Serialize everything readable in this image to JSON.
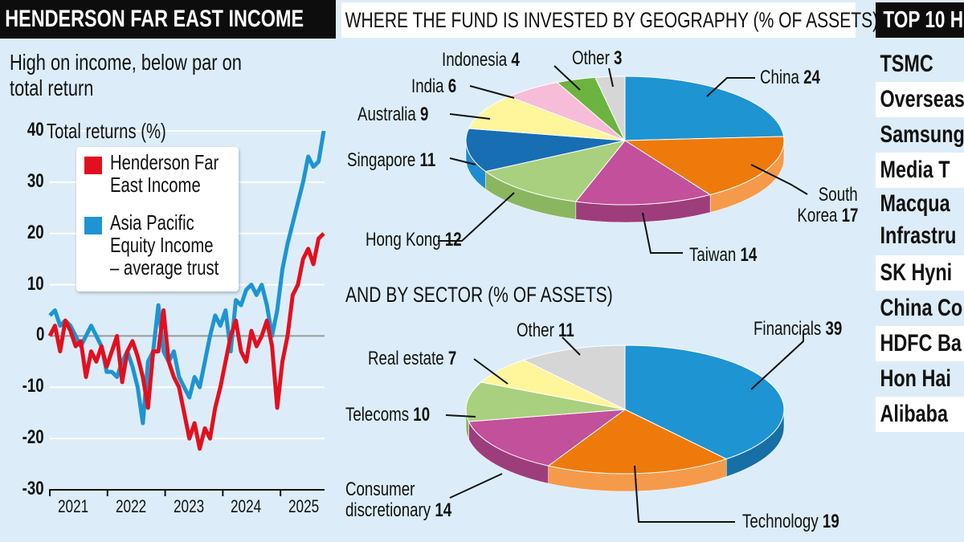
{
  "left": {
    "title": "HENDERSON FAR EAST INCOME",
    "subtitle_line1": "High on income, below par on",
    "subtitle_line2": "total return"
  },
  "middle": {
    "geo_title": "WHERE THE FUND IS INVESTED BY GEOGRAPHY (% OF ASSETS)",
    "sector_title": "AND BY SECTOR (% OF ASSETS)"
  },
  "right": {
    "title": "TOP 10 H",
    "holdings": [
      "TSMC",
      "Overseas",
      "Samsung",
      "Media T",
      "Macqua|Infrastru",
      "SK Hyni",
      "China Co",
      "HDFC Ba",
      "Hon Hai",
      "Alibaba"
    ]
  },
  "colors": {
    "red": "#e2101f",
    "blue": "#1e94d2",
    "background": "#dcedf9"
  },
  "chart_data": [
    {
      "type": "line",
      "title": "Total returns (%)",
      "ylabel": "Total returns (%)",
      "ylim": [
        -30,
        40
      ],
      "yticks": [
        "40",
        "30",
        "20",
        "10",
        "0",
        "-10",
        "-20",
        "-30"
      ],
      "xticks": [
        "2021",
        "2022",
        "2023",
        "2024",
        "2025"
      ],
      "xlim": [
        2021.0,
        2025.75
      ],
      "legend_position": "top-left",
      "series": [
        {
          "name": "Henderson Far East Income",
          "line1": "Henderson Far",
          "line2": "East Income",
          "color": "#e2101f",
          "values": [
            0,
            2,
            -3,
            3,
            1,
            -2,
            -1,
            -8,
            -3,
            -5,
            -2,
            -6,
            -3,
            0,
            -9,
            -3,
            -1,
            -4,
            -8,
            -14,
            -3,
            -3,
            5,
            -5,
            -8,
            -10,
            -15,
            -20,
            -17,
            -22,
            -18,
            -20,
            -14,
            -10,
            -5,
            0,
            3,
            -3,
            -5,
            1,
            -2,
            0,
            3,
            -2,
            -14,
            -5,
            0,
            8,
            10,
            15,
            17,
            14,
            19,
            20
          ]
        },
        {
          "name": "Asia Pacific Equity Income - average trust",
          "line1": "Asia Pacific",
          "line2": "Equity Income",
          "line3": "– average trust",
          "color": "#1e94d2",
          "values": [
            4,
            5,
            2,
            3,
            2,
            0,
            -2,
            0,
            2,
            0,
            -2,
            -7,
            -7,
            -8,
            -5,
            -3,
            -6,
            -10,
            -17,
            -5,
            -3,
            6,
            -3,
            -5,
            -3,
            -8,
            -10,
            -12,
            -8,
            -10,
            -5,
            0,
            4,
            2,
            5,
            -3,
            7,
            6,
            9,
            10,
            8,
            10,
            6,
            0,
            5,
            13,
            18,
            22,
            26,
            30,
            35,
            33,
            34,
            40
          ]
        }
      ]
    },
    {
      "type": "pie",
      "title": "WHERE THE FUND IS INVESTED BY GEOGRAPHY (% OF ASSETS)",
      "slices": [
        {
          "label": "China",
          "value": 24,
          "color": "#1e94d2",
          "side": "#1670a5"
        },
        {
          "label": "South Korea",
          "label1": "South",
          "label2": "Korea",
          "value": 17,
          "color": "#ee7a0c",
          "side": "#f59a4a"
        },
        {
          "label": "Taiwan",
          "value": 14,
          "color": "#c2509a",
          "side": "#9e3d7c"
        },
        {
          "label": "Hong Kong",
          "value": 12,
          "color": "#a9d07e",
          "side": "#8ab660"
        },
        {
          "label": "Singapore",
          "value": 11,
          "color": "#176eb3",
          "side": "#1f8bd0"
        },
        {
          "label": "Australia",
          "value": 9,
          "color": "#fff59a",
          "side": "#e8dc7a"
        },
        {
          "label": "India",
          "value": 6,
          "color": "#f6bcd8",
          "side": "#d99bb8"
        },
        {
          "label": "Indonesia",
          "value": 4,
          "color": "#6cb43f",
          "side": "#559530"
        },
        {
          "label": "Other",
          "value": 3,
          "color": "#d6d6d6",
          "side": "#b5b5b5"
        }
      ]
    },
    {
      "type": "pie",
      "title": "AND BY SECTOR (% OF ASSETS)",
      "slices": [
        {
          "label": "Financials",
          "value": 39,
          "color": "#1e94d2",
          "side": "#1670a5"
        },
        {
          "label": "Technology",
          "value": 19,
          "color": "#ee7a0c",
          "side": "#f59a4a"
        },
        {
          "label": "Consumer discretionary",
          "label1": "Consumer",
          "label2": "discretionary",
          "value": 14,
          "color": "#c2509a",
          "side": "#9e3d7c"
        },
        {
          "label": "Telecoms",
          "value": 10,
          "color": "#a9d07e",
          "side": "#8ab660"
        },
        {
          "label": "Real estate",
          "value": 7,
          "color": "#fff59a",
          "side": "#e8dc7a"
        },
        {
          "label": "Other",
          "value": 11,
          "color": "#d6d6d6",
          "side": "#b5b5b5"
        }
      ]
    }
  ]
}
